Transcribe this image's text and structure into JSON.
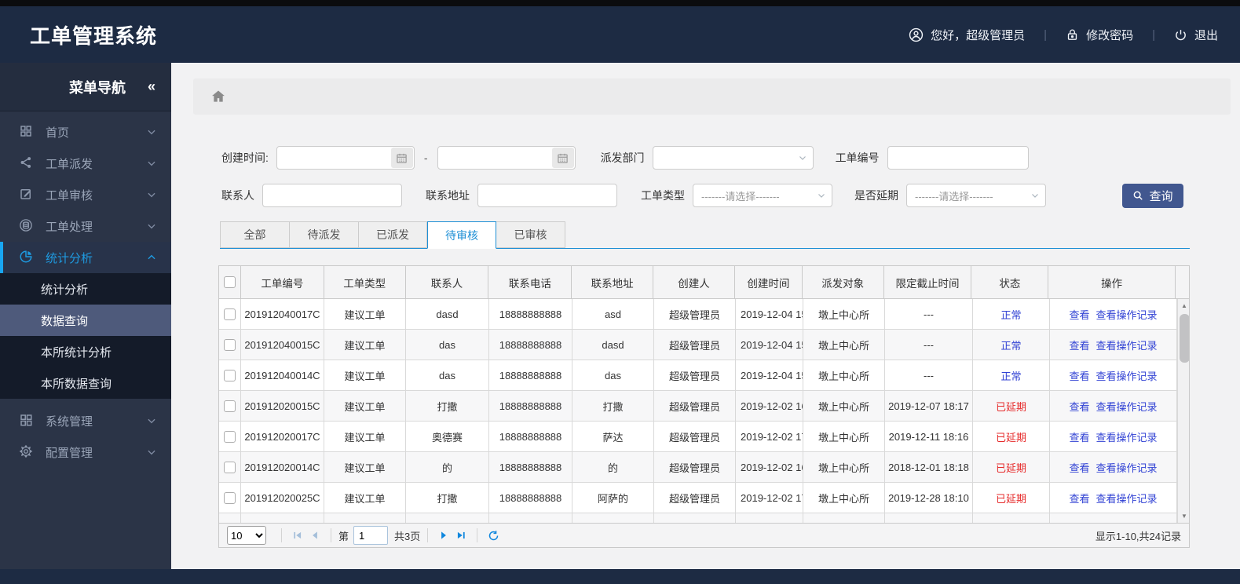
{
  "app": {
    "title": "工单管理系统"
  },
  "topbar": {
    "greeting": "您好，超级管理员",
    "change_password": "修改密码",
    "logout": "退出"
  },
  "sidebar": {
    "title": "菜单导航",
    "collapse_glyph": "«",
    "items": [
      {
        "label": "首页",
        "icon": "grid",
        "active": false
      },
      {
        "label": "工单派发",
        "icon": "share",
        "active": false
      },
      {
        "label": "工单审核",
        "icon": "edit",
        "active": false
      },
      {
        "label": "工单处理",
        "icon": "database",
        "active": false
      },
      {
        "label": "统计分析",
        "icon": "pie",
        "active": true,
        "expanded": true,
        "children": [
          {
            "label": "统计分析",
            "selected": false
          },
          {
            "label": "数据查询",
            "selected": true
          },
          {
            "label": "本所统计分析",
            "selected": false
          },
          {
            "label": "本所数据查询",
            "selected": false
          }
        ]
      },
      {
        "label": "系统管理",
        "icon": "grid2",
        "active": false
      },
      {
        "label": "配置管理",
        "icon": "gear",
        "active": false
      }
    ]
  },
  "filters": {
    "create_time_label": "创建时间:",
    "range_separator": "-",
    "dispatch_dept_label": "派发部门",
    "order_no_label": "工单编号",
    "contact_label": "联系人",
    "address_label": "联系地址",
    "order_type_label": "工单类型",
    "order_type_value": "-------请选择-------",
    "delay_label": "是否延期",
    "delay_value": "-------请选择-------",
    "search_button": "查询"
  },
  "tabs": [
    {
      "label": "全部",
      "active": false
    },
    {
      "label": "待派发",
      "active": false
    },
    {
      "label": "已派发",
      "active": false
    },
    {
      "label": "待审核",
      "active": true
    },
    {
      "label": "已审核",
      "active": false
    }
  ],
  "table": {
    "columns": [
      "工单编号",
      "工单类型",
      "联系人",
      "联系电话",
      "联系地址",
      "创建人",
      "创建时间",
      "派发对象",
      "限定截止时间",
      "状态",
      "操作"
    ],
    "actions": {
      "view": "查看",
      "view_log": "查看操作记录"
    },
    "rows": [
      {
        "order_no": "201912040017C",
        "type": "建议工单",
        "contact": "dasd",
        "phone": "18888888888",
        "address": "asd",
        "creator": "超级管理员",
        "created": "2019-12-04 15",
        "target": "墩上中心所",
        "deadline": "---",
        "status": "正常",
        "status_type": "normal"
      },
      {
        "order_no": "201912040015C",
        "type": "建议工单",
        "contact": "das",
        "phone": "18888888888",
        "address": "dasd",
        "creator": "超级管理员",
        "created": "2019-12-04 15",
        "target": "墩上中心所",
        "deadline": "---",
        "status": "正常",
        "status_type": "normal"
      },
      {
        "order_no": "201912040014C",
        "type": "建议工单",
        "contact": "das",
        "phone": "18888888888",
        "address": "das",
        "creator": "超级管理员",
        "created": "2019-12-04 15",
        "target": "墩上中心所",
        "deadline": "---",
        "status": "正常",
        "status_type": "normal"
      },
      {
        "order_no": "201912020015C",
        "type": "建议工单",
        "contact": "打撒",
        "phone": "18888888888",
        "address": "打撒",
        "creator": "超级管理员",
        "created": "2019-12-02 16",
        "target": "墩上中心所",
        "deadline": "2019-12-07 18:17",
        "status": "已延期",
        "status_type": "delayed"
      },
      {
        "order_no": "201912020017C",
        "type": "建议工单",
        "contact": "奥德赛",
        "phone": "18888888888",
        "address": "萨达",
        "creator": "超级管理员",
        "created": "2019-12-02 17",
        "target": "墩上中心所",
        "deadline": "2019-12-11 18:16",
        "status": "已延期",
        "status_type": "delayed"
      },
      {
        "order_no": "201912020014C",
        "type": "建议工单",
        "contact": "的",
        "phone": "18888888888",
        "address": "的",
        "creator": "超级管理员",
        "created": "2019-12-02 16",
        "target": "墩上中心所",
        "deadline": "2018-12-01 18:18",
        "status": "已延期",
        "status_type": "delayed"
      },
      {
        "order_no": "201912020025C",
        "type": "建议工单",
        "contact": "打撒",
        "phone": "18888888888",
        "address": "阿萨的",
        "creator": "超级管理员",
        "created": "2019-12-02 17",
        "target": "墩上中心所",
        "deadline": "2019-12-28 18:10",
        "status": "已延期",
        "status_type": "delayed"
      }
    ]
  },
  "pagination": {
    "page_size": "10",
    "page_prefix": "第",
    "current_page": "1",
    "total_pages": "共3页",
    "summary": "显示1-10,共24记录"
  },
  "colors": {
    "header_bg": "#1d2b43",
    "sidebar_bg": "#2b3447",
    "submenu_selected_bg": "#4e5a7b",
    "active_menu_blue": "#1e9ae0",
    "tab_active_blue": "#1e8fd5",
    "link_blue": "#3142d4",
    "status_normal": "#3142d4",
    "status_delayed": "#e62b2b",
    "query_button_bg": "#41578f"
  }
}
